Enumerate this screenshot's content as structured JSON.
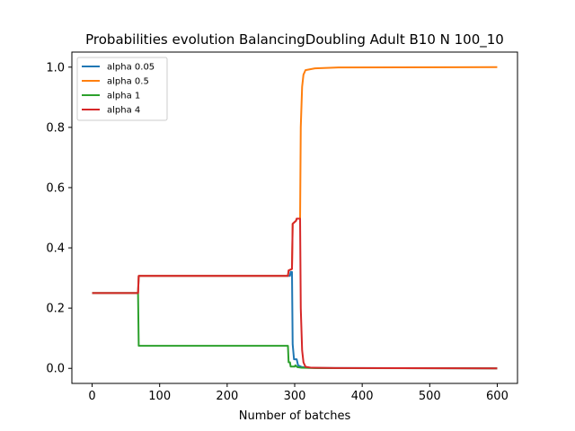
{
  "chart_data": {
    "type": "line",
    "title": "Probabilities evolution BalancingDoubling Adult B10 N 100_10",
    "xlabel": "Number of batches",
    "ylabel": "",
    "xlim": [
      -30,
      630
    ],
    "ylim": [
      -0.05,
      1.05
    ],
    "xticks": [
      0,
      100,
      200,
      300,
      400,
      500,
      600
    ],
    "yticks": [
      0.0,
      0.2,
      0.4,
      0.6,
      0.8,
      1.0
    ],
    "xtick_labels": [
      "0",
      "100",
      "200",
      "300",
      "400",
      "500",
      "600"
    ],
    "ytick_labels": [
      "0.0",
      "0.2",
      "0.4",
      "0.6",
      "0.8",
      "1.0"
    ],
    "grid": false,
    "legend_position": "top-left",
    "series": [
      {
        "name": "alpha 0.05",
        "color": "#1f77b4",
        "points": [
          [
            0,
            0.25
          ],
          [
            68,
            0.25
          ],
          [
            69,
            0.307
          ],
          [
            293,
            0.307
          ],
          [
            294,
            0.32
          ],
          [
            296,
            0.32
          ],
          [
            297,
            0.08
          ],
          [
            299,
            0.03
          ],
          [
            303,
            0.03
          ],
          [
            305,
            0.01
          ],
          [
            310,
            0.005
          ],
          [
            318,
            0.002
          ],
          [
            340,
            0.001
          ],
          [
            600,
            0.0
          ]
        ]
      },
      {
        "name": "alpha 0.5",
        "color": "#ff7f0e",
        "points": [
          [
            0,
            0.25
          ],
          [
            68,
            0.25
          ],
          [
            69,
            0.307
          ],
          [
            290,
            0.307
          ],
          [
            291,
            0.325
          ],
          [
            296,
            0.33
          ],
          [
            297,
            0.48
          ],
          [
            302,
            0.49
          ],
          [
            303,
            0.497
          ],
          [
            308,
            0.497
          ],
          [
            309,
            0.8
          ],
          [
            311,
            0.935
          ],
          [
            313,
            0.975
          ],
          [
            316,
            0.99
          ],
          [
            330,
            0.996
          ],
          [
            365,
            0.999
          ],
          [
            600,
            1.0
          ]
        ]
      },
      {
        "name": "alpha 1",
        "color": "#2ca02c",
        "points": [
          [
            0,
            0.25
          ],
          [
            68,
            0.25
          ],
          [
            69,
            0.075
          ],
          [
            290,
            0.075
          ],
          [
            291,
            0.02
          ],
          [
            293,
            0.02
          ],
          [
            294,
            0.006
          ],
          [
            300,
            0.006
          ],
          [
            301,
            0.01
          ],
          [
            304,
            0.004
          ],
          [
            310,
            0.002
          ],
          [
            330,
            0.001
          ],
          [
            600,
            0.0
          ]
        ]
      },
      {
        "name": "alpha 4",
        "color": "#d62728",
        "points": [
          [
            0,
            0.25
          ],
          [
            68,
            0.25
          ],
          [
            69,
            0.307
          ],
          [
            290,
            0.307
          ],
          [
            291,
            0.325
          ],
          [
            296,
            0.33
          ],
          [
            297,
            0.48
          ],
          [
            302,
            0.49
          ],
          [
            303,
            0.497
          ],
          [
            308,
            0.497
          ],
          [
            309,
            0.2
          ],
          [
            311,
            0.06
          ],
          [
            313,
            0.02
          ],
          [
            316,
            0.005
          ],
          [
            325,
            0.002
          ],
          [
            360,
            0.001
          ],
          [
            600,
            0.0
          ]
        ]
      }
    ]
  }
}
